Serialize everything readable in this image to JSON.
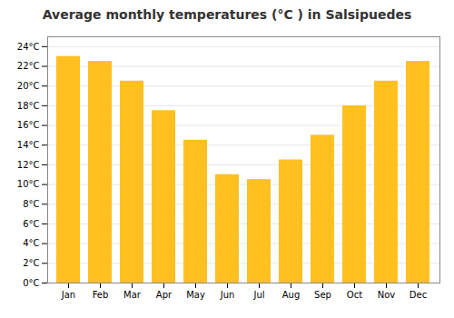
{
  "chart_data": {
    "type": "bar",
    "title": "Average monthly temperatures (°C ) in Salsipuedes",
    "categories": [
      "Jan",
      "Feb",
      "Mar",
      "Apr",
      "May",
      "Jun",
      "Jul",
      "Aug",
      "Sep",
      "Oct",
      "Nov",
      "Dec"
    ],
    "values": [
      23.0,
      22.5,
      20.5,
      17.5,
      14.5,
      11.0,
      10.5,
      12.5,
      15.0,
      18.0,
      20.5,
      22.5
    ],
    "color": "#FFC020",
    "ylim": [
      0,
      25
    ],
    "yticks": [
      {
        "value": 0,
        "label": "0°C"
      },
      {
        "value": 2,
        "label": "2°C"
      },
      {
        "value": 4,
        "label": "4°C"
      },
      {
        "value": 6,
        "label": "6°C"
      },
      {
        "value": 8,
        "label": "8°C"
      },
      {
        "value": 10,
        "label": "10°C"
      },
      {
        "value": 12,
        "label": "12°C"
      },
      {
        "value": 14,
        "label": "14°C"
      },
      {
        "value": 16,
        "label": "16°C"
      },
      {
        "value": 18,
        "label": "18°C"
      },
      {
        "value": 20,
        "label": "20°C"
      },
      {
        "value": 22,
        "label": "22°C"
      },
      {
        "value": 24,
        "label": "24°C"
      }
    ],
    "grid": true
  }
}
